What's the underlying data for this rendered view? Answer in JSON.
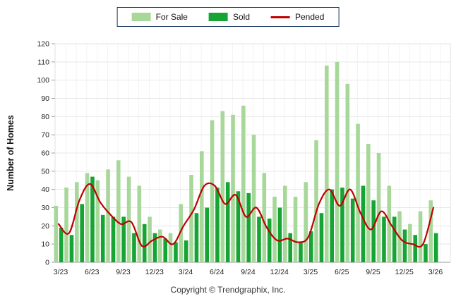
{
  "legend": {
    "items": [
      {
        "label": "For Sale",
        "type": "swatch",
        "color": "#a8d79a"
      },
      {
        "label": "Sold",
        "type": "swatch",
        "color": "#16a434"
      },
      {
        "label": "Pended",
        "type": "line",
        "color": "#c00000"
      }
    ]
  },
  "chart_data": {
    "type": "bar",
    "title": "",
    "xlabel": "",
    "ylabel": "Number of Homes",
    "ylim": [
      0,
      120
    ],
    "ytick_step": 10,
    "grid": true,
    "legend_position": "top-center",
    "categories": [
      "3/23",
      "4/23",
      "5/23",
      "6/23",
      "7/23",
      "8/23",
      "9/23",
      "10/23",
      "11/23",
      "12/23",
      "1/24",
      "2/24",
      "3/24",
      "4/24",
      "5/24",
      "6/24",
      "7/24",
      "8/24",
      "9/24",
      "10/24",
      "11/24",
      "12/24",
      "1/25",
      "2/25",
      "3/25",
      "4/25",
      "5/25",
      "6/25",
      "7/25",
      "8/25",
      "9/25",
      "10/25",
      "11/25",
      "12/25",
      "1/26",
      "2/26",
      "3/26"
    ],
    "xtick_labels_shown": [
      "3/23",
      "6/23",
      "9/23",
      "12/23",
      "3/24",
      "6/24",
      "9/24",
      "12/24",
      "3/25",
      "6/25",
      "9/25",
      "12/25",
      "3/26"
    ],
    "series": [
      {
        "name": "For Sale",
        "type": "bar",
        "color": "#a8d79a",
        "values": [
          31,
          41,
          44,
          49,
          45,
          51,
          56,
          47,
          42,
          25,
          18,
          16,
          32,
          48,
          61,
          78,
          83,
          81,
          86,
          70,
          49,
          36,
          42,
          36,
          44,
          67,
          108,
          110,
          98,
          76,
          65,
          60,
          42,
          28,
          21,
          28,
          34
        ]
      },
      {
        "name": "Sold",
        "type": "bar",
        "color": "#16a434",
        "values": [
          19,
          15,
          32,
          47,
          26,
          25,
          25,
          16,
          21,
          16,
          13,
          11,
          12,
          27,
          30,
          41,
          44,
          39,
          38,
          25,
          24,
          30,
          16,
          11,
          17,
          27,
          40,
          41,
          35,
          42,
          34,
          25,
          25,
          18,
          15,
          10,
          16
        ]
      },
      {
        "name": "Pended",
        "type": "line",
        "color": "#c00000",
        "values": [
          21,
          16,
          34,
          43,
          33,
          26,
          21,
          22,
          9,
          12,
          14,
          10,
          20,
          29,
          42,
          42,
          32,
          37,
          25,
          30,
          19,
          12,
          13,
          11,
          14,
          32,
          40,
          31,
          40,
          27,
          18,
          28,
          20,
          12,
          10,
          10,
          30
        ]
      }
    ]
  },
  "footer": {
    "copyright": "Copyright © Trendgraphix, Inc."
  }
}
